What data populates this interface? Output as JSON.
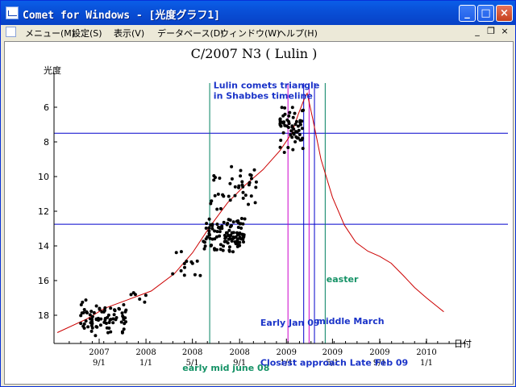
{
  "window": {
    "title": "Comet for Windows - [光度グラフ1]",
    "buttons": {
      "minimize": "_",
      "maximize": "□",
      "close": "×"
    }
  },
  "menu": {
    "items": [
      {
        "label": "メニュー(M)"
      },
      {
        "label": "設定(S)"
      },
      {
        "label": "表示(V)"
      },
      {
        "label": "データベース(D)"
      },
      {
        "label": "ウィンドウ(W)"
      },
      {
        "label": "ヘルプ(H)"
      }
    ],
    "mdi_buttons": {
      "minimize": "_",
      "restore": "❐",
      "close": "×"
    }
  },
  "chart_data": {
    "type": "scatter",
    "title": "C/2007 N3 ( Lulin )",
    "ylabel": "光度",
    "xlabel": "日付",
    "y_ticks": [
      "6",
      "8",
      "10",
      "12",
      "14",
      "16",
      "18"
    ],
    "x_ticks": [
      {
        "year": "2007",
        "date": "9/1"
      },
      {
        "year": "2008",
        "date": "1/1"
      },
      {
        "year": "2008",
        "date": "5/1"
      },
      {
        "year": "2008",
        "date": "9/1"
      },
      {
        "year": "2009",
        "date": "1/1"
      },
      {
        "year": "2009",
        "date": "5/1"
      },
      {
        "year": "2009",
        "date": "9/1"
      },
      {
        "year": "2010",
        "date": "1/1"
      }
    ],
    "y_reversed": true,
    "ylim": [
      19.2,
      4.8
    ],
    "colors": {
      "points": "#000000",
      "model_curve": "#cc0000",
      "blue_lines": "#0000cc",
      "green_lines": "#008060",
      "magenta_lines": "#cc00cc"
    },
    "horizontal_lines_mag": [
      7.5,
      12.75
    ],
    "model_curve": [
      {
        "x": "2007-05-15",
        "y": 19.0
      },
      {
        "x": "2007-08-01",
        "y": 18.2
      },
      {
        "x": "2007-09-15",
        "y": 17.6
      },
      {
        "x": "2007-11-15",
        "y": 17.1
      },
      {
        "x": "2008-01-15",
        "y": 16.6
      },
      {
        "x": "2008-03-15",
        "y": 15.6
      },
      {
        "x": "2008-05-01",
        "y": 14.4
      },
      {
        "x": "2008-06-15",
        "y": 12.9
      },
      {
        "x": "2008-08-01",
        "y": 11.5
      },
      {
        "x": "2008-09-15",
        "y": 10.5
      },
      {
        "x": "2008-11-01",
        "y": 9.6
      },
      {
        "x": "2008-12-15",
        "y": 8.5
      },
      {
        "x": "2009-01-15",
        "y": 7.5
      },
      {
        "x": "2009-02-01",
        "y": 6.4
      },
      {
        "x": "2009-02-15",
        "y": 5.6
      },
      {
        "x": "2009-02-24",
        "y": 5.2
      },
      {
        "x": "2009-03-10",
        "y": 6.6
      },
      {
        "x": "2009-04-01",
        "y": 9.0
      },
      {
        "x": "2009-05-01",
        "y": 11.2
      },
      {
        "x": "2009-06-01",
        "y": 12.8
      },
      {
        "x": "2009-07-01",
        "y": 13.8
      },
      {
        "x": "2009-08-01",
        "y": 14.3
      },
      {
        "x": "2009-09-01",
        "y": 14.6
      },
      {
        "x": "2009-10-01",
        "y": 15.0
      },
      {
        "x": "2009-11-01",
        "y": 15.7
      },
      {
        "x": "2009-12-01",
        "y": 16.4
      },
      {
        "x": "2010-01-01",
        "y": 17.0
      },
      {
        "x": "2010-02-15",
        "y": 17.8
      }
    ],
    "observation_clusters": [
      {
        "x_start": "2007-07-15",
        "x_end": "2007-11-15",
        "y_min": 17.0,
        "y_max": 19.2,
        "n": 80
      },
      {
        "x_start": "2007-11-15",
        "x_end": "2008-01-01",
        "y_min": 16.7,
        "y_max": 17.4,
        "n": 6
      },
      {
        "x_start": "2008-03-01",
        "x_end": "2008-06-01",
        "y_min": 13.0,
        "y_max": 16.0,
        "n": 14
      },
      {
        "x_start": "2008-06-01",
        "x_end": "2008-09-15",
        "y_min": 12.3,
        "y_max": 14.5,
        "n": 110
      },
      {
        "x_start": "2008-06-15",
        "x_end": "2008-10-15",
        "y_min": 9.3,
        "y_max": 12.0,
        "n": 40
      },
      {
        "x_start": "2008-12-15",
        "x_end": "2009-02-15",
        "y_min": 5.8,
        "y_max": 8.8,
        "n": 60
      }
    ],
    "vertical_lines": [
      {
        "x": "2008-06-15",
        "color": "green"
      },
      {
        "x": "2009-01-05",
        "color": "magenta"
      },
      {
        "x": "2009-02-15",
        "color": "blue"
      },
      {
        "x": "2009-03-01",
        "color": "magenta"
      },
      {
        "x": "2009-03-15",
        "color": "blue"
      },
      {
        "x": "2009-04-12",
        "color": "green"
      }
    ],
    "annotations": [
      {
        "text": "Lulin comets triangle",
        "color": "blue",
        "x": "2008-06-25",
        "y": 4.9
      },
      {
        "text": "in Shabbes timeline",
        "color": "blue",
        "x": "2008-06-25",
        "y": 5.5
      },
      {
        "text": "easter",
        "color": "green",
        "x": "2009-04-15",
        "y": 16.1
      },
      {
        "text": "Early Jan 09",
        "color": "blue",
        "x": "2008-10-25",
        "y": 18.6
      },
      {
        "text": "middle March",
        "color": "blue",
        "x": "2009-03-20",
        "y": 18.5
      },
      {
        "text": "early mid june 08",
        "color": "green",
        "x": "2008-04-05",
        "y": 21.2
      },
      {
        "text": "Closest approach Late Feb 09",
        "color": "blue",
        "x": "2008-10-25",
        "y": 20.9
      }
    ]
  }
}
